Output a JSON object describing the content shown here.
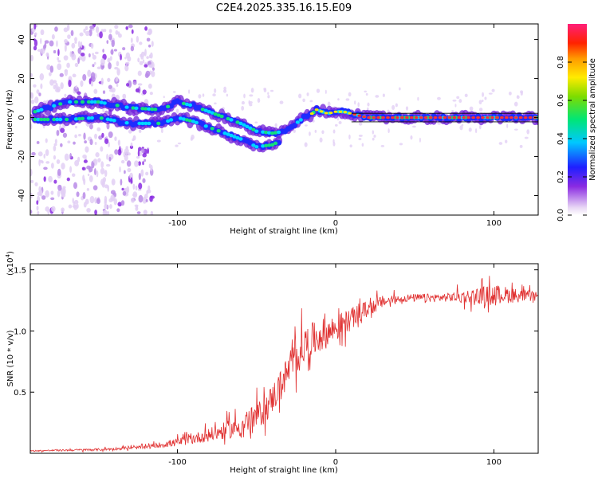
{
  "title": "C2E4.2025.335.16.15.E09",
  "chart_data": [
    {
      "type": "heatmap",
      "name": "spectrogram",
      "xlabel": "Height of straight line (km)",
      "ylabel": "Frequency (Hz)",
      "xlim": [
        -193,
        128
      ],
      "ylim": [
        -50,
        48
      ],
      "x_ticks": [
        -100,
        0,
        100
      ],
      "x_tick_labels": [
        "-100",
        "0",
        "100"
      ],
      "y_ticks": [
        -40,
        -20,
        0,
        20,
        40
      ],
      "y_tick_labels": [
        "-40",
        "-20",
        "0",
        "20",
        "40"
      ],
      "colorbar": {
        "label": "Normalized spectral amplitude",
        "range": [
          0.0,
          1.0
        ],
        "ticks": [
          0.0,
          0.2,
          0.4,
          0.6,
          0.8
        ],
        "tick_labels": [
          "0.0",
          "0.2",
          "0.4",
          "0.6",
          "0.8"
        ]
      },
      "signal_tracks": [
        {
          "name": "upper-track",
          "points": [
            [
              -190,
              3
            ],
            [
              -170,
              8
            ],
            [
              -150,
              8
            ],
            [
              -130,
              5
            ],
            [
              -110,
              4
            ],
            [
              -100,
              8
            ],
            [
              -90,
              6
            ],
            [
              -80,
              3
            ],
            [
              -70,
              0
            ],
            [
              -60,
              -3
            ],
            [
              -50,
              -7
            ],
            [
              -40,
              -8
            ],
            [
              -32,
              -7
            ],
            [
              -25,
              -3
            ],
            [
              -20,
              0
            ],
            [
              -15,
              2
            ],
            [
              -12,
              4
            ],
            [
              -5,
              2
            ],
            [
              0,
              3
            ],
            [
              5,
              3
            ],
            [
              10,
              2
            ],
            [
              20,
              0
            ],
            [
              128,
              0
            ]
          ]
        },
        {
          "name": "lower-track",
          "points": [
            [
              -190,
              -1
            ],
            [
              -170,
              -1
            ],
            [
              -150,
              0
            ],
            [
              -130,
              -3
            ],
            [
              -110,
              -3
            ],
            [
              -100,
              0
            ],
            [
              -90,
              -2
            ],
            [
              -80,
              -5
            ],
            [
              -70,
              -8
            ],
            [
              -60,
              -11
            ],
            [
              -50,
              -15
            ],
            [
              -40,
              -14
            ],
            [
              -35,
              -12
            ]
          ]
        }
      ],
      "noise_region_x": [
        -193,
        -115
      ]
    },
    {
      "type": "line",
      "name": "snr",
      "xlabel": "Height of straight line (km)",
      "ylabel": "SNR (10 * v/v)",
      "y_scale_label": "(x10",
      "y_scale_exponent": "4",
      "xlim": [
        -193,
        128
      ],
      "ylim": [
        0,
        15500
      ],
      "x_ticks": [
        -100,
        0,
        100
      ],
      "x_tick_labels": [
        "-100",
        "0",
        "100"
      ],
      "y_ticks": [
        5000,
        10000,
        15000
      ],
      "y_tick_labels": [
        "0.5",
        "1.0",
        "1.5"
      ],
      "series": [
        {
          "name": "SNR",
          "color": "#e03030",
          "trend": [
            [
              -193,
              200
            ],
            [
              -150,
              300
            ],
            [
              -120,
              500
            ],
            [
              -100,
              900
            ],
            [
              -80,
              1500
            ],
            [
              -60,
              2200
            ],
            [
              -45,
              3500
            ],
            [
              -35,
              5500
            ],
            [
              -28,
              7200
            ],
            [
              -20,
              8800
            ],
            [
              -10,
              9600
            ],
            [
              0,
              10200
            ],
            [
              10,
              11000
            ],
            [
              20,
              11800
            ],
            [
              30,
              12400
            ],
            [
              45,
              12700
            ],
            [
              60,
              12700
            ],
            [
              80,
              12800
            ],
            [
              100,
              13000
            ],
            [
              115,
              12900
            ],
            [
              128,
              12800
            ]
          ],
          "noise_envelope": [
            [
              -193,
              100
            ],
            [
              -120,
              300
            ],
            [
              -80,
              1200
            ],
            [
              -45,
              2500
            ],
            [
              -20,
              3500
            ],
            [
              0,
              2500
            ],
            [
              20,
              1500
            ],
            [
              40,
              700
            ],
            [
              70,
              800
            ],
            [
              100,
              1800
            ],
            [
              128,
              800
            ]
          ]
        }
      ]
    }
  ]
}
